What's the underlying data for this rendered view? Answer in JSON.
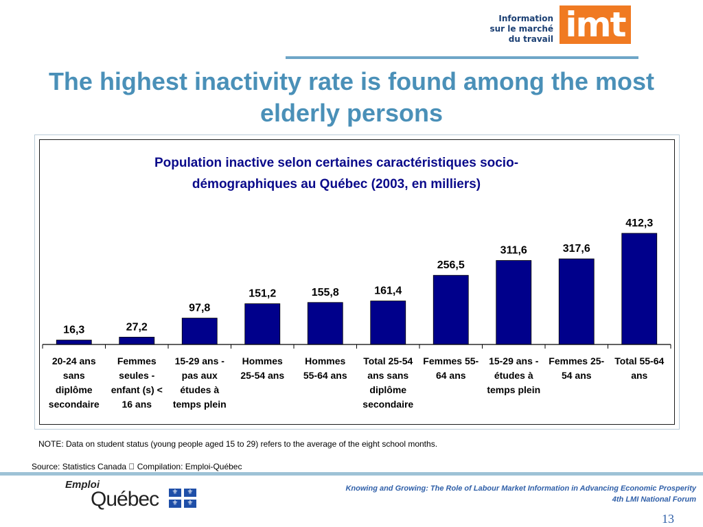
{
  "logo": {
    "text_lines": [
      "Information",
      "sur le marché",
      "du travail"
    ],
    "mark": "imt",
    "colors": {
      "text": "#1b3f73",
      "box": "#f07a22"
    }
  },
  "slide": {
    "title": "The highest inactivity rate is found among the most elderly persons",
    "title_color": "#4a90b8"
  },
  "chart_data": {
    "type": "bar",
    "title": "Population inactive selon certaines caractéristiques socio-démographiques au Québec (2003, en milliers)",
    "categories": [
      "20-24 ans sans diplôme secondaire",
      "Femmes seules - enfant (s) < 16 ans",
      "15-29 ans - pas aux études à temps plein",
      "Hommes 25-54 ans",
      "Hommes 55-64 ans",
      "Total 25-54 ans sans diplôme secondaire",
      "Femmes 55-64 ans",
      "15-29 ans - études à temps plein",
      "Femmes 25-54 ans",
      "Total 55-64 ans"
    ],
    "category_label_lines": [
      [
        "20-24 ans",
        "sans",
        "diplôme",
        "secondaire"
      ],
      [
        "Femmes",
        "seules -",
        "enfant (s) <",
        "16 ans"
      ],
      [
        "15-29 ans -",
        "pas aux",
        "études à",
        "temps plein"
      ],
      [
        "Hommes",
        "25-54 ans"
      ],
      [
        "Hommes",
        "55-64 ans"
      ],
      [
        "Total 25-54",
        "ans sans",
        "diplôme",
        "secondaire"
      ],
      [
        "Femmes 55-",
        "64 ans"
      ],
      [
        "15-29 ans -",
        "études à",
        "temps plein"
      ],
      [
        "Femmes 25-",
        "54 ans"
      ],
      [
        "Total 55-64",
        "ans"
      ]
    ],
    "values": [
      16.3,
      27.2,
      97.8,
      151.2,
      155.8,
      161.4,
      256.5,
      311.6,
      317.6,
      412.3
    ],
    "value_labels": [
      "16,3",
      "27,2",
      "97,8",
      "151,2",
      "155,8",
      "161,4",
      "256,5",
      "311,6",
      "317,6",
      "412,3"
    ],
    "xlabel": "",
    "ylabel": "",
    "ylim": [
      0,
      412.3
    ],
    "grid": false,
    "legend": "none",
    "bar_color": "#00008b",
    "title_color": "#0a0a8a"
  },
  "note": "NOTE: Data on student status (young people aged 15 to 29) refers to the average of the eight school months.",
  "source": "Source: Statistics Canada \u0000 Compilation: Emploi-Québec",
  "footer": {
    "emploi": "Emploi",
    "quebec": "Québec",
    "line1": "Knowing and Growing: The Role of Labour Market Information in Advancing Economic Prosperity",
    "line2": "4th LMI National Forum",
    "page_number": "13",
    "flag_icon": "fleur-de-lis-flag-icon"
  }
}
